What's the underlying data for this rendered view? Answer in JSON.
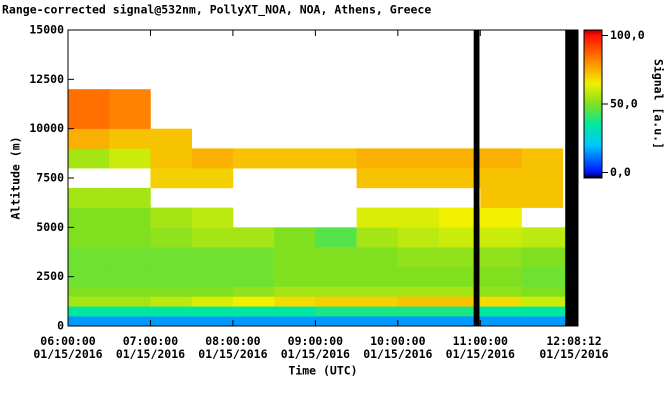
{
  "chart_data": {
    "type": "heatmap",
    "title": "Range-corrected signal@532nm, PollyXT_NOA, NOA, Athens, Greece",
    "x_label": "Time (UTC)",
    "y_label": "Altitude (m)",
    "colorbar_label": "Signal [a.u.]",
    "x_edges": [
      6,
      6.5,
      7,
      7.5,
      8,
      8.5,
      9,
      9.5,
      10,
      10.5,
      11,
      11.5,
      12,
      12.185
    ],
    "y_edges": [
      0,
      500,
      1000,
      1500,
      2000,
      3000,
      4000,
      5000,
      6000,
      7000,
      8000,
      9000,
      10000,
      12000,
      15000
    ],
    "z": [
      [
        15,
        15,
        15,
        15,
        15,
        15,
        15,
        15,
        15,
        15,
        15,
        15,
        15
      ],
      [
        35,
        35,
        35,
        35,
        35,
        35,
        38,
        38,
        38,
        38,
        35,
        35,
        35
      ],
      [
        55,
        55,
        58,
        62,
        65,
        68,
        70,
        70,
        72,
        72,
        68,
        60,
        60
      ],
      [
        50,
        50,
        50,
        50,
        52,
        55,
        55,
        55,
        55,
        55,
        52,
        50,
        50
      ],
      [
        48,
        48,
        48,
        48,
        48,
        50,
        50,
        50,
        50,
        50,
        50,
        48,
        48
      ],
      [
        48,
        48,
        48,
        48,
        48,
        50,
        50,
        50,
        52,
        52,
        52,
        50,
        50
      ],
      [
        50,
        50,
        52,
        55,
        55,
        50,
        45,
        55,
        58,
        60,
        60,
        58,
        58
      ],
      [
        50,
        50,
        55,
        58,
        null,
        null,
        null,
        62,
        62,
        65,
        65,
        null,
        null
      ],
      [
        55,
        55,
        null,
        null,
        null,
        null,
        null,
        null,
        null,
        null,
        72,
        72,
        null
      ],
      [
        null,
        null,
        70,
        70,
        null,
        null,
        null,
        72,
        72,
        72,
        72,
        72,
        null
      ],
      [
        55,
        60,
        72,
        75,
        72,
        72,
        72,
        75,
        75,
        75,
        75,
        72,
        null
      ],
      [
        75,
        72,
        72,
        null,
        null,
        null,
        null,
        null,
        null,
        null,
        null,
        null,
        null
      ],
      [
        85,
        82,
        null,
        null,
        null,
        null,
        null,
        null,
        null,
        null,
        null,
        null,
        null
      ],
      [
        null,
        null,
        null,
        null,
        null,
        null,
        null,
        null,
        null,
        null,
        null,
        null,
        null
      ]
    ],
    "gaps": [
      [
        10.92,
        10.99
      ],
      [
        12.03,
        12.185
      ]
    ],
    "gap_color": "#000000",
    "xlim": [
      6,
      12.185
    ],
    "ylim": [
      0,
      15000
    ],
    "zlim": [
      -4,
      104
    ],
    "xticks": [
      {
        "value": 6,
        "label": "06:00:00 01/15/2016"
      },
      {
        "value": 7,
        "label": "07:00:00 01/15/2016"
      },
      {
        "value": 8,
        "label": "08:00:00 01/15/2016"
      },
      {
        "value": 9,
        "label": "09:00:00 01/15/2016"
      },
      {
        "value": 10,
        "label": "10:00:00 01/15/2016"
      },
      {
        "value": 11,
        "label": "11:00:00 01/15/2016"
      },
      {
        "value": 12.13667,
        "label": "12:08:12 01/15/2016"
      }
    ],
    "yticks": [
      0,
      2500,
      5000,
      7500,
      10000,
      12500,
      15000
    ],
    "zticks": [
      {
        "value": 0,
        "label": "0,0"
      },
      {
        "value": 50,
        "label": "50,0"
      },
      {
        "value": 100,
        "label": "100,0"
      }
    ],
    "colormap": [
      [
        -4,
        "#000000"
      ],
      [
        0,
        "#0010ff"
      ],
      [
        20,
        "#00c8ff"
      ],
      [
        35,
        "#00e8a0"
      ],
      [
        50,
        "#80e020"
      ],
      [
        65,
        "#f0f000"
      ],
      [
        80,
        "#ff9000"
      ],
      [
        100,
        "#ff1000"
      ],
      [
        104,
        "#a00000"
      ]
    ]
  }
}
